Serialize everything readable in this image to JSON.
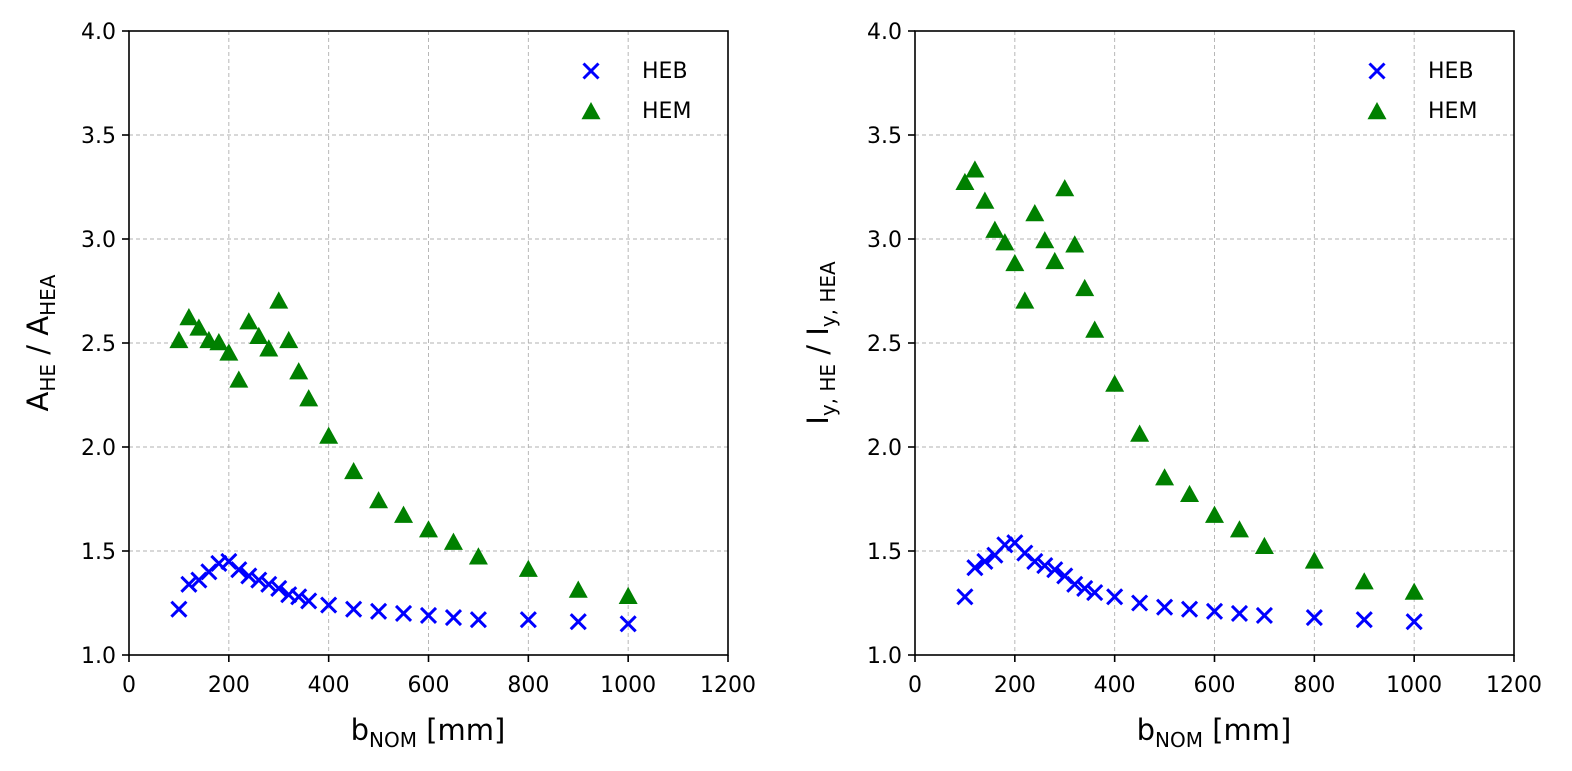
{
  "chart_data": [
    {
      "type": "scatter",
      "xlim": [
        0,
        1200
      ],
      "ylim": [
        1.0,
        4.0
      ],
      "xticks": [
        "0",
        "200",
        "400",
        "600",
        "800",
        "1000",
        "1200"
      ],
      "yticks": [
        "1.0",
        "1.5",
        "2.0",
        "2.5",
        "3.0",
        "3.5",
        "4.0"
      ],
      "xlabel": {
        "main": "b",
        "sub": "NOM",
        "rest": " [mm]"
      },
      "ylabel": {
        "p1": "A",
        "s1": "HE",
        "p2": " / A",
        "s2": "HEA",
        "p3": ""
      },
      "grid": true,
      "legend": "top-right",
      "series": [
        {
          "name": "HEB",
          "marker": "x",
          "color": "#0000ff",
          "x": [
            100,
            120,
            140,
            160,
            180,
            200,
            220,
            240,
            260,
            280,
            300,
            320,
            340,
            360,
            400,
            450,
            500,
            550,
            600,
            650,
            700,
            800,
            900,
            1000
          ],
          "y": [
            1.22,
            1.34,
            1.36,
            1.4,
            1.44,
            1.45,
            1.41,
            1.38,
            1.36,
            1.34,
            1.32,
            1.29,
            1.28,
            1.26,
            1.24,
            1.22,
            1.21,
            1.2,
            1.19,
            1.18,
            1.17,
            1.17,
            1.16,
            1.15
          ]
        },
        {
          "name": "HEM",
          "marker": "triangle",
          "color": "#008000",
          "x": [
            100,
            120,
            140,
            160,
            180,
            200,
            220,
            240,
            260,
            280,
            300,
            320,
            340,
            360,
            400,
            450,
            500,
            550,
            600,
            650,
            700,
            800,
            900,
            1000
          ],
          "y": [
            2.51,
            2.62,
            2.57,
            2.51,
            2.5,
            2.45,
            2.32,
            2.6,
            2.53,
            2.47,
            2.7,
            2.51,
            2.36,
            2.23,
            2.05,
            1.88,
            1.74,
            1.67,
            1.6,
            1.54,
            1.47,
            1.41,
            1.31,
            1.28
          ]
        }
      ]
    },
    {
      "type": "scatter",
      "xlim": [
        0,
        1200
      ],
      "ylim": [
        1.0,
        4.0
      ],
      "xticks": [
        "0",
        "200",
        "400",
        "600",
        "800",
        "1000",
        "1200"
      ],
      "yticks": [
        "1.0",
        "1.5",
        "2.0",
        "2.5",
        "3.0",
        "3.5",
        "4.0"
      ],
      "xlabel": {
        "main": "b",
        "sub": "NOM",
        "rest": " [mm]"
      },
      "ylabel": {
        "p1": "I",
        "s1": "y, HE",
        "p2": " / I",
        "s2": "y, HEA",
        "p3": ""
      },
      "grid": true,
      "legend": "top-right",
      "series": [
        {
          "name": "HEB",
          "marker": "x",
          "color": "#0000ff",
          "x": [
            100,
            120,
            140,
            160,
            180,
            200,
            220,
            240,
            260,
            280,
            300,
            320,
            340,
            360,
            400,
            450,
            500,
            550,
            600,
            650,
            700,
            800,
            900,
            1000
          ],
          "y": [
            1.28,
            1.42,
            1.45,
            1.48,
            1.53,
            1.54,
            1.49,
            1.45,
            1.43,
            1.41,
            1.38,
            1.34,
            1.32,
            1.3,
            1.28,
            1.25,
            1.23,
            1.22,
            1.21,
            1.2,
            1.19,
            1.18,
            1.17,
            1.16
          ]
        },
        {
          "name": "HEM",
          "marker": "triangle",
          "color": "#008000",
          "x": [
            100,
            120,
            140,
            160,
            180,
            200,
            220,
            240,
            260,
            280,
            300,
            320,
            340,
            360,
            400,
            450,
            500,
            550,
            600,
            650,
            700,
            800,
            900,
            1000
          ],
          "y": [
            3.27,
            3.33,
            3.18,
            3.04,
            2.98,
            2.88,
            2.7,
            3.12,
            2.99,
            2.89,
            3.24,
            2.97,
            2.76,
            2.56,
            2.3,
            2.06,
            1.85,
            1.77,
            1.67,
            1.6,
            1.52,
            1.45,
            1.35,
            1.3
          ]
        }
      ]
    }
  ]
}
